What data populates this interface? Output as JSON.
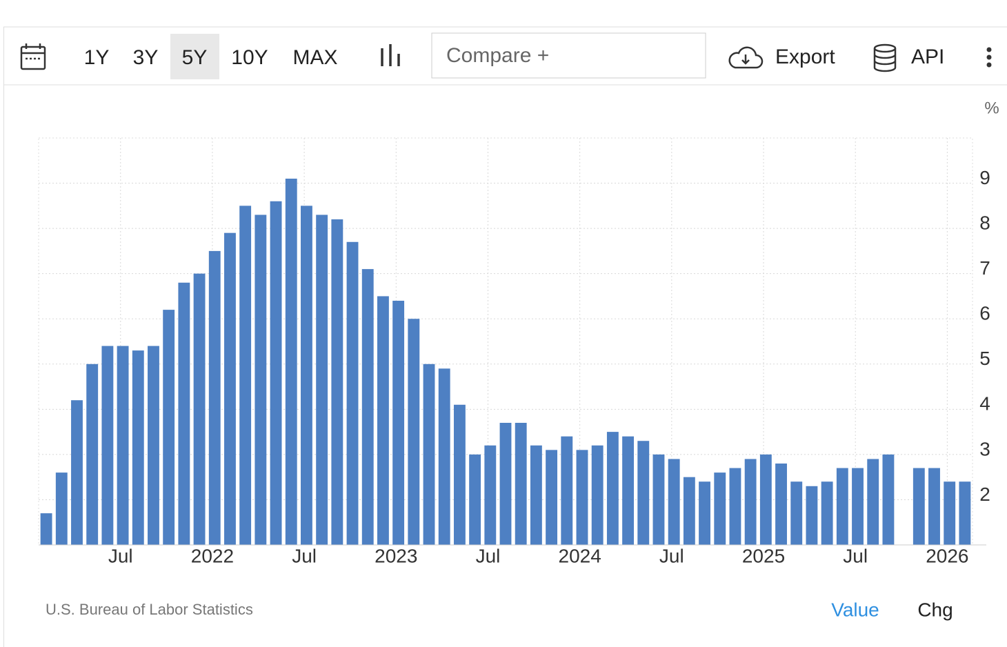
{
  "toolbar": {
    "ranges": [
      "1Y",
      "3Y",
      "5Y",
      "10Y",
      "MAX"
    ],
    "compare": "Compare +",
    "export": "Export",
    "api": "API"
  },
  "footer": {
    "source": "U.S. Bureau of Labor Statistics",
    "tabs": [
      "Value",
      "Chg"
    ]
  },
  "chart_data": {
    "type": "bar",
    "unit": "%",
    "color": "#4e80c3",
    "grid": true,
    "categories": [
      null,
      null,
      null,
      null,
      null,
      "Jul",
      null,
      null,
      null,
      null,
      null,
      "2022",
      null,
      null,
      null,
      null,
      null,
      "Jul",
      null,
      null,
      null,
      null,
      null,
      "2023",
      null,
      null,
      null,
      null,
      null,
      "Jul",
      null,
      null,
      null,
      null,
      null,
      "2024",
      null,
      null,
      null,
      null,
      null,
      "Jul",
      null,
      null,
      null,
      null,
      null,
      "2025",
      null,
      null,
      null,
      null,
      null,
      "Jul",
      null,
      null,
      null,
      null,
      null,
      "2026",
      null
    ],
    "values": [
      1.7,
      2.6,
      4.2,
      5.0,
      5.4,
      5.4,
      5.3,
      5.4,
      6.2,
      6.8,
      7.0,
      7.5,
      7.9,
      8.5,
      8.3,
      8.6,
      9.1,
      8.5,
      8.3,
      8.2,
      7.7,
      7.1,
      6.5,
      6.4,
      6.0,
      5.0,
      4.9,
      4.1,
      3.0,
      3.2,
      3.7,
      3.7,
      3.2,
      3.1,
      3.4,
      3.1,
      3.2,
      3.5,
      3.4,
      3.3,
      3.0,
      2.9,
      2.5,
      2.4,
      2.6,
      2.7,
      2.9,
      3.0,
      2.8,
      2.4,
      2.3,
      2.4,
      2.7,
      2.7,
      2.9,
      3.0,
      null,
      2.7,
      2.7,
      2.4,
      2.4
    ],
    "ylim": [
      1,
      10
    ],
    "yticks": [
      2,
      3,
      4,
      5,
      6,
      7,
      8,
      9
    ]
  }
}
